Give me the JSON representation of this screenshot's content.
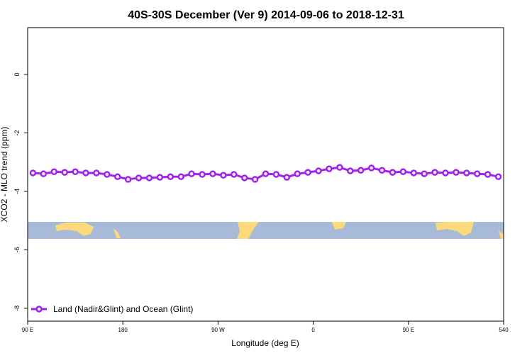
{
  "chart_data": {
    "type": "line",
    "title": "40S-30S December (Ver 9)   2014-09-06 to 2018-12-31",
    "x_label": "Longitude (deg E)",
    "y_label": "XCO2 - MLO trend (ppm)",
    "x": [
      95,
      105,
      115,
      125,
      135,
      145,
      155,
      165,
      175,
      185,
      195,
      205,
      215,
      225,
      235,
      245,
      255,
      265,
      275,
      285,
      295,
      305,
      315,
      325,
      335,
      345,
      355,
      365,
      375,
      385,
      395,
      405,
      415,
      425,
      435,
      445,
      455,
      465,
      475,
      485,
      495,
      505,
      515,
      525,
      535
    ],
    "series": [
      {
        "name": "Land (Nadir&Glint) and Ocean (Glint)",
        "color": "#a020f0",
        "values": [
          -3.37,
          -3.4,
          -3.33,
          -3.35,
          -3.33,
          -3.37,
          -3.37,
          -3.42,
          -3.5,
          -3.59,
          -3.54,
          -3.54,
          -3.52,
          -3.5,
          -3.5,
          -3.4,
          -3.42,
          -3.4,
          -3.45,
          -3.42,
          -3.54,
          -3.59,
          -3.4,
          -3.42,
          -3.52,
          -3.4,
          -3.35,
          -3.3,
          -3.23,
          -3.18,
          -3.3,
          -3.28,
          -3.2,
          -3.28,
          -3.35,
          -3.33,
          -3.37,
          -3.4,
          -3.35,
          -3.37,
          -3.35,
          -3.37,
          -3.4,
          -3.42,
          -3.5
        ]
      }
    ],
    "xlim": [
      90,
      540
    ],
    "xticks": [
      {
        "value": 90,
        "label": "90 E"
      },
      180,
      {
        "value": 270,
        "label": "90 W"
      },
      {
        "value": 360,
        "label": "0"
      },
      {
        "value": 450,
        "label": "90 E"
      },
      540
    ],
    "ylim": [
      -8.44,
      1.6
    ],
    "yticks": [
      0,
      -2,
      -4,
      -6,
      -8
    ],
    "legend": "bottom-left"
  }
}
